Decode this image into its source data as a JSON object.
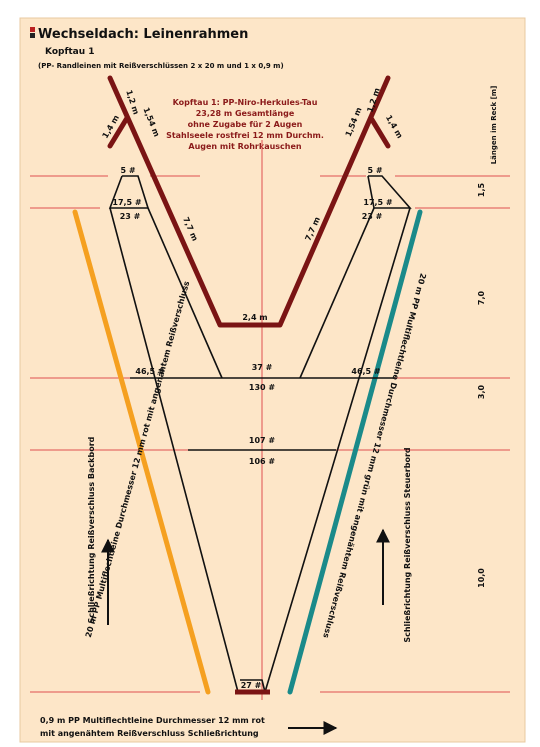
{
  "header": {
    "title": "Wechseldach:  Leinenrahmen",
    "subtitle": "Kopftau 1",
    "note": "(PP- Randleinen mit  Reißverschlüssen 2 x 20 m und 1 x 0,9 m)"
  },
  "annotation": [
    "Kopftau 1: PP-Niro-Herkules-Tau",
    "23,28 m Gesamtlänge",
    "ohne Zugabe für 2 Augen",
    "Stahlseele rostfrei 12 mm Durchm.",
    "Augen mit Rohrkauschen"
  ],
  "lengths": {
    "title": "Längen im Reck [m]",
    "values": [
      "1,5",
      "7,0",
      "3,0",
      "10,0"
    ]
  },
  "rope_labels": [
    "1,2 m",
    "1,54 m",
    "1,4 m",
    "7,7 m",
    "2,4 m",
    "7,7 m",
    "1,54 m",
    "1,2 m",
    "1,4 m"
  ],
  "mesh_labels": [
    "5 #",
    "17,5 #",
    "23 #",
    "5 #",
    "17,5 #",
    "23 #",
    "46,5 #",
    "37 #",
    "46,5 #",
    "130 #",
    "107 #",
    "106 #",
    "27 #"
  ],
  "lines": {
    "left": "20 m  PP Multiflechtleine Durchmesser 12 mm  rot mit angenähtem Reißverschluss",
    "right": "20 m  PP Multiflechtleine Durchmesser 12 mm  grün mit angenähtem Reißverschluss",
    "left_closing": "Schließrichtung Reißverschluss Backbord",
    "right_closing": "Schließrichtung Reißverschluss Steuerbord",
    "bottom": [
      "0,9 m  PP Multiflechtleine Durchmesser 12 mm  rot",
      "mit angenähtem Reißverschluss Schließrichtung"
    ]
  }
}
